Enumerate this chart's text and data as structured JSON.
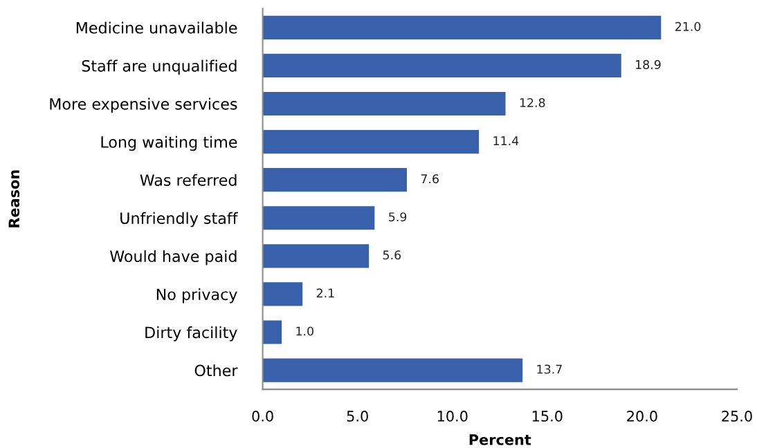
{
  "chart_data": {
    "type": "bar",
    "orientation": "horizontal",
    "xlabel": "Percent",
    "ylabel": "Reason",
    "categories": [
      "Medicine unavailable",
      "Staff are unqualified",
      "More expensive services",
      "Long waiting time",
      "Was referred",
      "Unfriendly staff",
      "Would have paid",
      "No privacy",
      "Dirty facility",
      "Other"
    ],
    "values": [
      21.0,
      18.9,
      12.8,
      11.4,
      7.6,
      5.9,
      5.6,
      2.1,
      1.0,
      13.7
    ],
    "value_labels": [
      "21.0",
      "18.9",
      "12.8",
      "11.4",
      "7.6",
      "5.9",
      "5.6",
      "2.1",
      "1.0",
      "13.7"
    ],
    "color": "#3860ab",
    "xlim": [
      0,
      25
    ],
    "xticks": [
      {
        "value": 0,
        "label": "0.0"
      },
      {
        "value": 5,
        "label": "5.0"
      },
      {
        "value": 10,
        "label": "10.0"
      },
      {
        "value": 15,
        "label": "15.0"
      },
      {
        "value": 20,
        "label": "20.0"
      },
      {
        "value": 25,
        "label": "25.0"
      }
    ],
    "grid": false,
    "legend": false
  }
}
